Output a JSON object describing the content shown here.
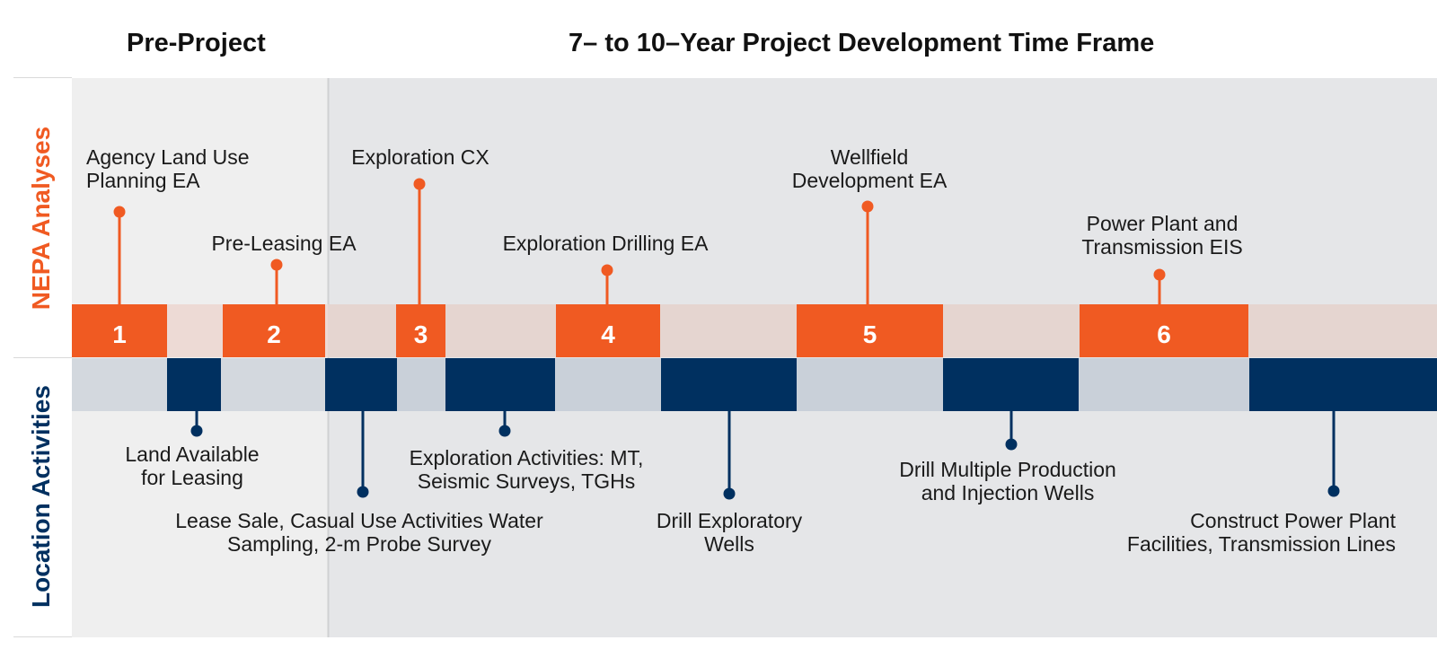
{
  "headers": {
    "pre_project": "Pre-Project",
    "time_frame": "7– to 10–Year Project Development Time Frame"
  },
  "rows": {
    "nepa": "NEPA Analyses",
    "location": "Location Activities"
  },
  "colors": {
    "orange": "#f05a22",
    "orange_light": "#e5d5d0",
    "navy": "#003060",
    "navy_light": "#c9d0d9",
    "pre_bg": "#efefef",
    "main_bg": "#e5e6e8"
  },
  "nepa_milestones": [
    {
      "number": "1",
      "lines": [
        "Agency Land Use",
        "Planning EA"
      ]
    },
    {
      "number": "2",
      "lines": [
        "Pre-Leasing EA"
      ]
    },
    {
      "number": "3",
      "lines": [
        "Exploration CX"
      ]
    },
    {
      "number": "4",
      "lines": [
        "Exploration Drilling EA"
      ]
    },
    {
      "number": "5",
      "lines": [
        "Wellfield",
        "Development EA"
      ]
    },
    {
      "number": "6",
      "lines": [
        "Power Plant and",
        "Transmission EIS"
      ]
    }
  ],
  "location_activities": [
    {
      "lines": [
        "Land Available",
        "for Leasing"
      ]
    },
    {
      "lines": [
        "Lease Sale, Casual Use Activities Water",
        "Sampling, 2-m Probe Survey"
      ]
    },
    {
      "lines": [
        "Exploration Activities: MT,",
        "Seismic Surveys, TGHs"
      ]
    },
    {
      "lines": [
        "Drill Exploratory",
        "Wells"
      ]
    },
    {
      "lines": [
        "Drill Multiple Production",
        "and Injection Wells"
      ]
    },
    {
      "lines": [
        "Construct Power Plant",
        "Facilities, Transmission Lines"
      ]
    }
  ]
}
